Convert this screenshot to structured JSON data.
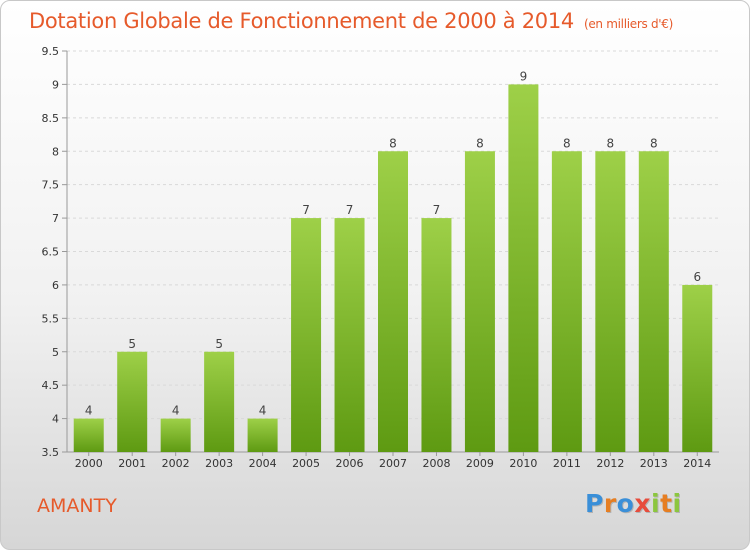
{
  "header": {
    "title": "Dotation Globale de Fonctionnement de 2000 à 2014",
    "subtitle": "(en milliers d'€)"
  },
  "footer": {
    "place": "AMANTY",
    "logo": {
      "letters": [
        "P",
        "r",
        "o",
        "x",
        "i",
        "t",
        "i"
      ],
      "colors": [
        "#3a8fd8",
        "#e67e22",
        "#3a8fd8",
        "#e74c3c",
        "#8cc63f",
        "#e67e22",
        "#8cc63f"
      ]
    }
  },
  "chart_data": {
    "type": "bar",
    "title": "Dotation Globale de Fonctionnement de 2000 à 2014",
    "subtitle": "(en milliers d'€)",
    "categories": [
      "2000",
      "2001",
      "2002",
      "2003",
      "2004",
      "2005",
      "2006",
      "2007",
      "2008",
      "2009",
      "2010",
      "2011",
      "2012",
      "2013",
      "2014"
    ],
    "values": [
      4,
      5,
      4,
      5,
      4,
      7,
      7,
      8,
      7,
      8,
      9,
      8,
      8,
      8,
      6
    ],
    "value_labels": [
      "4",
      "5",
      "4",
      "5",
      "4",
      "7",
      "7",
      "8",
      "7",
      "8",
      "9",
      "8",
      "8",
      "8",
      "6"
    ],
    "ylim": [
      3.5,
      9.5
    ],
    "yticks": [
      "3.5",
      "4",
      "4.5",
      "5",
      "5.5",
      "6",
      "6.5",
      "7",
      "7.5",
      "8",
      "8.5",
      "9",
      "9.5"
    ],
    "grid": true,
    "bar_color_top": "#9ed048",
    "bar_color_bottom": "#5e9a12",
    "grid_color": "#d9d9d9"
  }
}
